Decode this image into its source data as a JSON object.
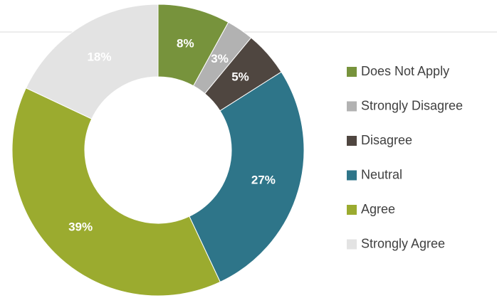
{
  "chart_data": {
    "type": "donut",
    "categories": [
      "Does Not Apply",
      "Strongly Disagree",
      "Disagree",
      "Neutral",
      "Agree",
      "Strongly Agree"
    ],
    "values": [
      8,
      3,
      5,
      27,
      39,
      18
    ],
    "value_labels": [
      "8%",
      "3%",
      "5%",
      "27%",
      "39%",
      "18%"
    ],
    "colors": [
      "#77933c",
      "#b2b2b2",
      "#4f4640",
      "#2e7589",
      "#9bab2f",
      "#e3e3e3"
    ],
    "legend": "right"
  }
}
